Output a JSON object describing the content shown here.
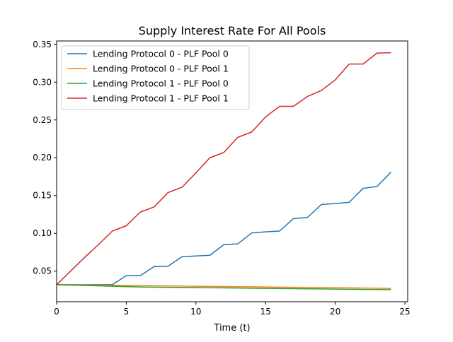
{
  "chart_data": {
    "type": "line",
    "title": "Supply Interest Rate For All Pools",
    "xlabel": "Time (t)",
    "ylabel": "",
    "xlim": [
      0,
      25.2
    ],
    "ylim": [
      0.0095,
      0.3545
    ],
    "xticks": [
      0,
      5,
      10,
      15,
      20,
      25
    ],
    "xtick_labels": [
      "0",
      "5",
      "10",
      "15",
      "20",
      "25"
    ],
    "yticks": [
      0.05,
      0.1,
      0.15,
      0.2,
      0.25,
      0.3,
      0.35
    ],
    "ytick_labels": [
      "0.05",
      "0.10",
      "0.15",
      "0.20",
      "0.25",
      "0.30",
      "0.35"
    ],
    "grid": false,
    "legend": "upper left",
    "x": [
      0,
      1,
      2,
      3,
      4,
      5,
      6,
      7,
      8,
      9,
      10,
      11,
      12,
      13,
      14,
      15,
      16,
      17,
      18,
      19,
      20,
      21,
      22,
      23,
      24
    ],
    "series": [
      {
        "name": "Lending Protocol 0 - PLF Pool 0",
        "color": "#1f77b4",
        "values": [
          0.032,
          0.032,
          0.032,
          0.032,
          0.032,
          0.044,
          0.044,
          0.056,
          0.0565,
          0.069,
          0.07,
          0.071,
          0.085,
          0.086,
          0.1005,
          0.102,
          0.103,
          0.1195,
          0.121,
          0.138,
          0.1395,
          0.141,
          0.1595,
          0.162,
          0.181
        ]
      },
      {
        "name": "Lending Protocol 0 - PLF Pool 1",
        "color": "#ff7f0e",
        "values": [
          0.032,
          0.0318,
          0.0316,
          0.0314,
          0.0312,
          0.031,
          0.0308,
          0.0306,
          0.0304,
          0.0302,
          0.03,
          0.0298,
          0.0296,
          0.0294,
          0.0292,
          0.029,
          0.0288,
          0.0286,
          0.0284,
          0.0282,
          0.028,
          0.0278,
          0.0276,
          0.0274,
          0.027
        ]
      },
      {
        "name": "Lending Protocol 1 - PLF Pool 0",
        "color": "#2ca02c",
        "values": [
          0.032,
          0.0315,
          0.031,
          0.0305,
          0.03,
          0.0295,
          0.029,
          0.0288,
          0.0286,
          0.0284,
          0.0282,
          0.028,
          0.0278,
          0.0276,
          0.0274,
          0.0272,
          0.027,
          0.0268,
          0.0266,
          0.0264,
          0.0262,
          0.026,
          0.0258,
          0.0256,
          0.0254
        ]
      },
      {
        "name": "Lending Protocol 1 - PLF Pool 1",
        "color": "#d62728",
        "values": [
          0.032,
          0.05,
          0.068,
          0.085,
          0.103,
          0.11,
          0.128,
          0.135,
          0.154,
          0.161,
          0.18,
          0.2,
          0.207,
          0.227,
          0.234,
          0.254,
          0.268,
          0.268,
          0.281,
          0.289,
          0.303,
          0.324,
          0.324,
          0.3385,
          0.339
        ]
      }
    ]
  }
}
